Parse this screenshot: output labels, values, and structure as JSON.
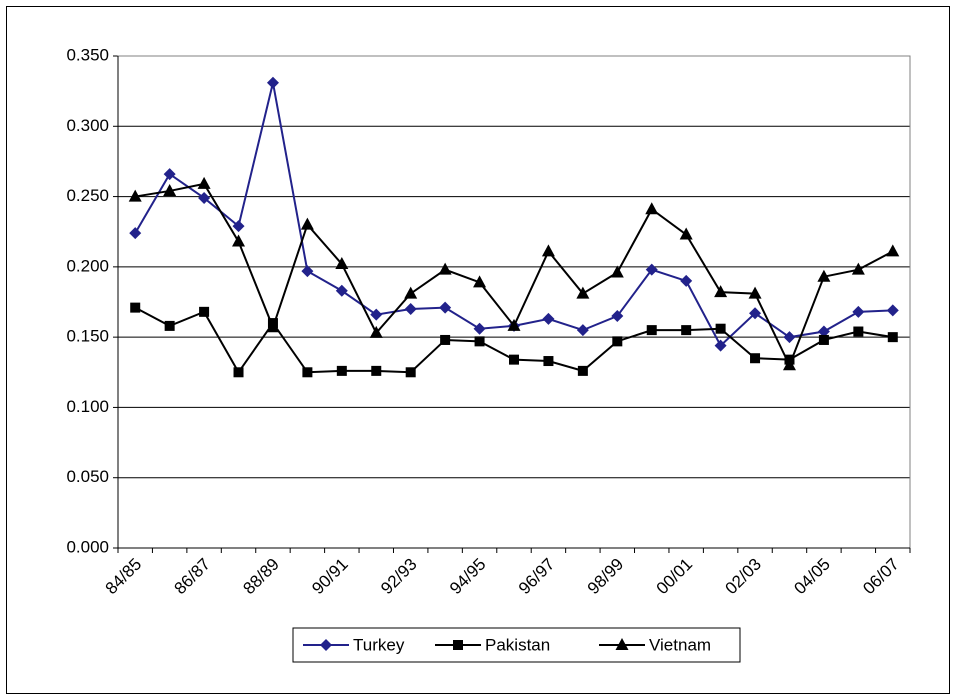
{
  "chart_data": {
    "type": "line",
    "categories": [
      "84/85",
      null,
      "86/87",
      null,
      "88/89",
      null,
      "90/91",
      null,
      "92/93",
      null,
      "94/95",
      null,
      "96/97",
      null,
      "98/99",
      null,
      "00/01",
      null,
      "02/03",
      null,
      "04/05",
      null,
      "06/07"
    ],
    "series": [
      {
        "name": "Turkey",
        "color": "#22228b",
        "marker": "diamond",
        "values": [
          0.224,
          0.266,
          0.249,
          0.229,
          0.331,
          0.197,
          0.183,
          0.166,
          0.17,
          0.171,
          0.156,
          0.158,
          0.163,
          0.155,
          0.165,
          0.198,
          0.19,
          0.144,
          0.167,
          0.15,
          0.154,
          0.168,
          0.169
        ]
      },
      {
        "name": "Pakistan",
        "color": "#000000",
        "marker": "square",
        "values": [
          0.171,
          0.158,
          0.168,
          0.125,
          0.16,
          0.125,
          0.126,
          0.126,
          0.125,
          0.148,
          0.147,
          0.134,
          0.133,
          0.126,
          0.147,
          0.155,
          0.155,
          0.156,
          0.135,
          0.134,
          0.148,
          0.154,
          0.15
        ]
      },
      {
        "name": "Vietnam",
        "color": "#000000",
        "marker": "triangle",
        "values": [
          0.25,
          0.254,
          0.259,
          0.218,
          0.157,
          0.23,
          0.202,
          0.153,
          0.181,
          0.198,
          0.189,
          0.158,
          0.211,
          0.181,
          0.196,
          0.241,
          0.223,
          0.182,
          0.181,
          0.13,
          0.193,
          0.198,
          0.211
        ]
      }
    ],
    "ylim": [
      0,
      0.35
    ],
    "yticks": [
      {
        "value": 0,
        "label": "0.000"
      },
      {
        "value": 0.05,
        "label": "0.050"
      },
      {
        "value": 0.1,
        "label": "0.100"
      },
      {
        "value": 0.15,
        "label": "0.150"
      },
      {
        "value": 0.2,
        "label": "0.200"
      },
      {
        "value": 0.25,
        "label": "0.250"
      },
      {
        "value": 0.3,
        "label": "0.300"
      },
      {
        "value": 0.35,
        "label": "0.350"
      }
    ],
    "grid": true,
    "legend": "bottom"
  }
}
